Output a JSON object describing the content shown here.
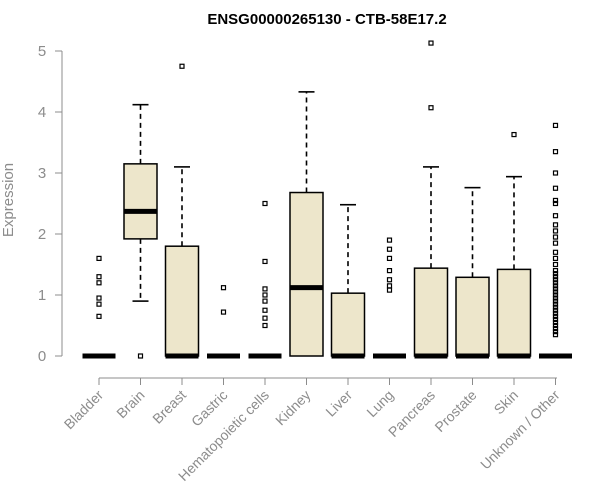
{
  "chart_data": {
    "type": "boxplot",
    "title": "ENSG00000265130 - CTB-58E17.2",
    "ylabel": "Expression",
    "xlabel": "",
    "ylim": [
      0,
      5.2
    ],
    "yticks": [
      "0",
      "1",
      "2",
      "3",
      "4",
      "5"
    ],
    "colors": {
      "box_fill": "#ede6cb",
      "box_stroke": "#000000",
      "axis": "#8c8c8c"
    },
    "grid": false,
    "categories": [
      "Bladder",
      "Brain",
      "Breast",
      "Gastric",
      "Hematopoietic cells",
      "Kidney",
      "Liver",
      "Lung",
      "Pancreas",
      "Prostate",
      "Skin",
      "Unknown / Other"
    ],
    "boxes": [
      {
        "name": "Bladder",
        "q1": 0,
        "median": 0,
        "q3": 0,
        "whisker_low": 0,
        "whisker_high": 0,
        "outliers": [
          0.65,
          0.85,
          0.95,
          1.2,
          1.3,
          1.6
        ]
      },
      {
        "name": "Brain",
        "q1": 1.92,
        "median": 2.37,
        "q3": 3.15,
        "whisker_low": 0.9,
        "whisker_high": 4.12,
        "outliers": [
          0
        ]
      },
      {
        "name": "Breast",
        "q1": 0,
        "median": 0,
        "q3": 1.8,
        "whisker_low": 0,
        "whisker_high": 3.1,
        "outliers": [
          4.75
        ]
      },
      {
        "name": "Gastric",
        "q1": 0,
        "median": 0,
        "q3": 0,
        "whisker_low": 0,
        "whisker_high": 0,
        "outliers": [
          0.72,
          1.12
        ]
      },
      {
        "name": "Hematopoietic cells",
        "q1": 0,
        "median": 0,
        "q3": 0,
        "whisker_low": 0,
        "whisker_high": 0,
        "outliers": [
          0.5,
          0.62,
          0.75,
          0.9,
          1.0,
          1.1,
          1.55,
          2.5
        ]
      },
      {
        "name": "Kidney",
        "q1": 0,
        "median": 1.12,
        "q3": 2.68,
        "whisker_low": 0,
        "whisker_high": 4.33,
        "outliers": []
      },
      {
        "name": "Liver",
        "q1": 0,
        "median": 0,
        "q3": 1.03,
        "whisker_low": 0,
        "whisker_high": 2.48,
        "outliers": []
      },
      {
        "name": "Lung",
        "q1": 0,
        "median": 0,
        "q3": 0,
        "whisker_low": 0,
        "whisker_high": 0,
        "outliers": [
          1.08,
          1.15,
          1.25,
          1.4,
          1.6,
          1.75,
          1.9
        ]
      },
      {
        "name": "Pancreas",
        "q1": 0,
        "median": 0,
        "q3": 1.44,
        "whisker_low": 0,
        "whisker_high": 3.1,
        "outliers": [
          4.07,
          5.13
        ]
      },
      {
        "name": "Prostate",
        "q1": 0,
        "median": 0,
        "q3": 1.29,
        "whisker_low": 0,
        "whisker_high": 2.76,
        "outliers": []
      },
      {
        "name": "Skin",
        "q1": 0,
        "median": 0,
        "q3": 1.42,
        "whisker_low": 0,
        "whisker_high": 2.94,
        "outliers": [
          3.63
        ]
      },
      {
        "name": "Unknown / Other",
        "q1": 0,
        "median": 0,
        "q3": 0,
        "whisker_low": 0,
        "whisker_high": 0,
        "outliers": [
          0.35,
          0.4,
          0.45,
          0.5,
          0.55,
          0.6,
          0.65,
          0.7,
          0.75,
          0.8,
          0.85,
          0.9,
          0.95,
          1.0,
          1.05,
          1.1,
          1.15,
          1.2,
          1.25,
          1.3,
          1.35,
          1.4,
          1.5,
          1.6,
          1.7,
          1.85,
          1.95,
          2.05,
          2.15,
          2.3,
          2.5,
          2.55,
          2.75,
          3.0,
          3.35,
          3.78
        ]
      }
    ]
  }
}
